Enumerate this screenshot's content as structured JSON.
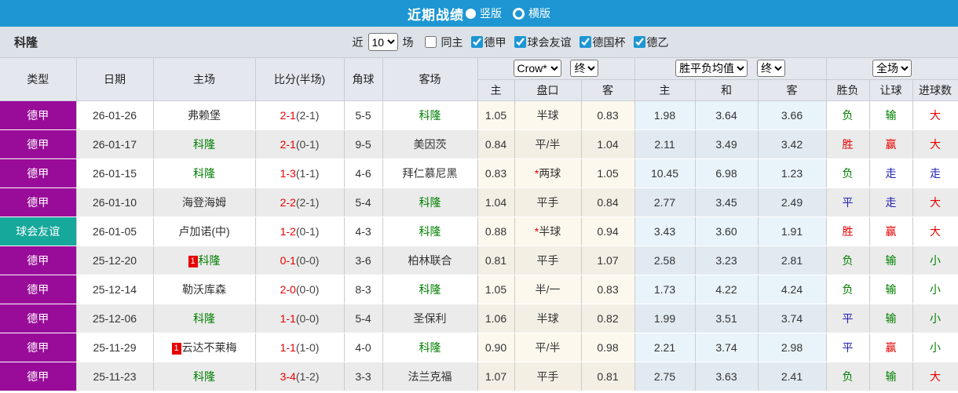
{
  "titlebar": {
    "title": "近期战绩",
    "radio_vertical": "竖版",
    "radio_horizontal": "横版",
    "selected": "竖版"
  },
  "filterbar": {
    "team": "科隆",
    "near_label": "近",
    "count_value": "10",
    "count_suffix": "场",
    "checkboxes": [
      {
        "label": "同主",
        "checked": false
      },
      {
        "label": "德甲",
        "checked": true
      },
      {
        "label": "球会友谊",
        "checked": true
      },
      {
        "label": "德国杯",
        "checked": true
      },
      {
        "label": "德乙",
        "checked": true
      }
    ]
  },
  "table": {
    "left_headers": [
      "类型",
      "日期",
      "主场",
      "比分(半场)",
      "角球",
      "客场"
    ],
    "selects": {
      "odds_company": "Crow*",
      "odds_time": "终",
      "avg_label": "胜平负均值",
      "avg_time": "终",
      "full_match": "全场"
    },
    "sub_headers": [
      "主",
      "盘口",
      "客",
      "主",
      "和",
      "客",
      "胜负",
      "让球",
      "进球数"
    ],
    "type_colors": {
      "league": "#990b99",
      "friend": "#16a89b"
    },
    "text_colors": {
      "r": "#e60000",
      "g": "#008000",
      "b": "#2121b8"
    },
    "rows": [
      {
        "type": "德甲",
        "tk": "league",
        "date": "26-01-26",
        "home": {
          "name": "弗赖堡",
          "team": false,
          "badge": ""
        },
        "ft": "2-1",
        "ht": "(2-1)",
        "corner": "5-5",
        "away": {
          "name": "科隆",
          "team": true,
          "badge": ""
        },
        "o1": "1.05",
        "pan": "半球",
        "star": false,
        "o2": "0.83",
        "a1": "1.98",
        "a2": "3.64",
        "a3": "3.66",
        "r1": [
          "负",
          "g"
        ],
        "r2": [
          "输",
          "g"
        ],
        "r3": [
          "大",
          "r"
        ]
      },
      {
        "type": "德甲",
        "tk": "league",
        "date": "26-01-17",
        "home": {
          "name": "科隆",
          "team": true,
          "badge": ""
        },
        "ft": "2-1",
        "ht": "(0-1)",
        "corner": "9-5",
        "away": {
          "name": "美因茨",
          "team": false,
          "badge": ""
        },
        "o1": "0.84",
        "pan": "平/半",
        "star": false,
        "o2": "1.04",
        "a1": "2.11",
        "a2": "3.49",
        "a3": "3.42",
        "r1": [
          "胜",
          "r"
        ],
        "r2": [
          "赢",
          "r"
        ],
        "r3": [
          "大",
          "r"
        ]
      },
      {
        "type": "德甲",
        "tk": "league",
        "date": "26-01-15",
        "home": {
          "name": "科隆",
          "team": true,
          "badge": ""
        },
        "ft": "1-3",
        "ht": "(1-1)",
        "corner": "4-6",
        "away": {
          "name": "拜仁慕尼黑",
          "team": false,
          "badge": ""
        },
        "o1": "0.83",
        "pan": "两球",
        "star": true,
        "o2": "1.05",
        "a1": "10.45",
        "a2": "6.98",
        "a3": "1.23",
        "r1": [
          "负",
          "g"
        ],
        "r2": [
          "走",
          "b"
        ],
        "r3": [
          "走",
          "b"
        ]
      },
      {
        "type": "德甲",
        "tk": "league",
        "date": "26-01-10",
        "home": {
          "name": "海登海姆",
          "team": false,
          "badge": ""
        },
        "ft": "2-2",
        "ht": "(2-1)",
        "corner": "5-4",
        "away": {
          "name": "科隆",
          "team": true,
          "badge": ""
        },
        "o1": "1.04",
        "pan": "平手",
        "star": false,
        "o2": "0.84",
        "a1": "2.77",
        "a2": "3.45",
        "a3": "2.49",
        "r1": [
          "平",
          "b"
        ],
        "r2": [
          "走",
          "b"
        ],
        "r3": [
          "大",
          "r"
        ]
      },
      {
        "type": "球会友谊",
        "tk": "friend",
        "date": "26-01-05",
        "home": {
          "name": "卢加诺(中)",
          "team": false,
          "badge": ""
        },
        "ft": "1-2",
        "ht": "(0-1)",
        "corner": "4-3",
        "away": {
          "name": "科隆",
          "team": true,
          "badge": ""
        },
        "o1": "0.88",
        "pan": "半球",
        "star": true,
        "o2": "0.94",
        "a1": "3.43",
        "a2": "3.60",
        "a3": "1.91",
        "r1": [
          "胜",
          "r"
        ],
        "r2": [
          "赢",
          "r"
        ],
        "r3": [
          "大",
          "r"
        ]
      },
      {
        "type": "德甲",
        "tk": "league",
        "date": "25-12-20",
        "home": {
          "name": "科隆",
          "team": true,
          "badge": "1"
        },
        "ft": "0-1",
        "ht": "(0-0)",
        "corner": "3-6",
        "away": {
          "name": "柏林联合",
          "team": false,
          "badge": ""
        },
        "o1": "0.81",
        "pan": "平手",
        "star": false,
        "o2": "1.07",
        "a1": "2.58",
        "a2": "3.23",
        "a3": "2.81",
        "r1": [
          "负",
          "g"
        ],
        "r2": [
          "输",
          "g"
        ],
        "r3": [
          "小",
          "g"
        ]
      },
      {
        "type": "德甲",
        "tk": "league",
        "date": "25-12-14",
        "home": {
          "name": "勒沃库森",
          "team": false,
          "badge": ""
        },
        "ft": "2-0",
        "ht": "(0-0)",
        "corner": "8-3",
        "away": {
          "name": "科隆",
          "team": true,
          "badge": ""
        },
        "o1": "1.05",
        "pan": "半/一",
        "star": false,
        "o2": "0.83",
        "a1": "1.73",
        "a2": "4.22",
        "a3": "4.24",
        "r1": [
          "负",
          "g"
        ],
        "r2": [
          "输",
          "g"
        ],
        "r3": [
          "小",
          "g"
        ]
      },
      {
        "type": "德甲",
        "tk": "league",
        "date": "25-12-06",
        "home": {
          "name": "科隆",
          "team": true,
          "badge": ""
        },
        "ft": "1-1",
        "ht": "(0-0)",
        "corner": "5-4",
        "away": {
          "name": "圣保利",
          "team": false,
          "badge": ""
        },
        "o1": "1.06",
        "pan": "半球",
        "star": false,
        "o2": "0.82",
        "a1": "1.99",
        "a2": "3.51",
        "a3": "3.74",
        "r1": [
          "平",
          "b"
        ],
        "r2": [
          "输",
          "g"
        ],
        "r3": [
          "小",
          "g"
        ]
      },
      {
        "type": "德甲",
        "tk": "league",
        "date": "25-11-29",
        "home": {
          "name": "云达不莱梅",
          "team": false,
          "badge": "1"
        },
        "ft": "1-1",
        "ht": "(1-0)",
        "corner": "4-0",
        "away": {
          "name": "科隆",
          "team": true,
          "badge": ""
        },
        "o1": "0.90",
        "pan": "平/半",
        "star": false,
        "o2": "0.98",
        "a1": "2.21",
        "a2": "3.74",
        "a3": "2.98",
        "r1": [
          "平",
          "b"
        ],
        "r2": [
          "赢",
          "r"
        ],
        "r3": [
          "小",
          "g"
        ]
      },
      {
        "type": "德甲",
        "tk": "league",
        "date": "25-11-23",
        "home": {
          "name": "科隆",
          "team": true,
          "badge": ""
        },
        "ft": "3-4",
        "ht": "(1-2)",
        "corner": "3-3",
        "away": {
          "name": "法兰克福",
          "team": false,
          "badge": ""
        },
        "o1": "1.07",
        "pan": "平手",
        "star": false,
        "o2": "0.81",
        "a1": "2.75",
        "a2": "3.63",
        "a3": "2.41",
        "r1": [
          "负",
          "g"
        ],
        "r2": [
          "输",
          "g"
        ],
        "r3": [
          "大",
          "r"
        ]
      }
    ]
  }
}
